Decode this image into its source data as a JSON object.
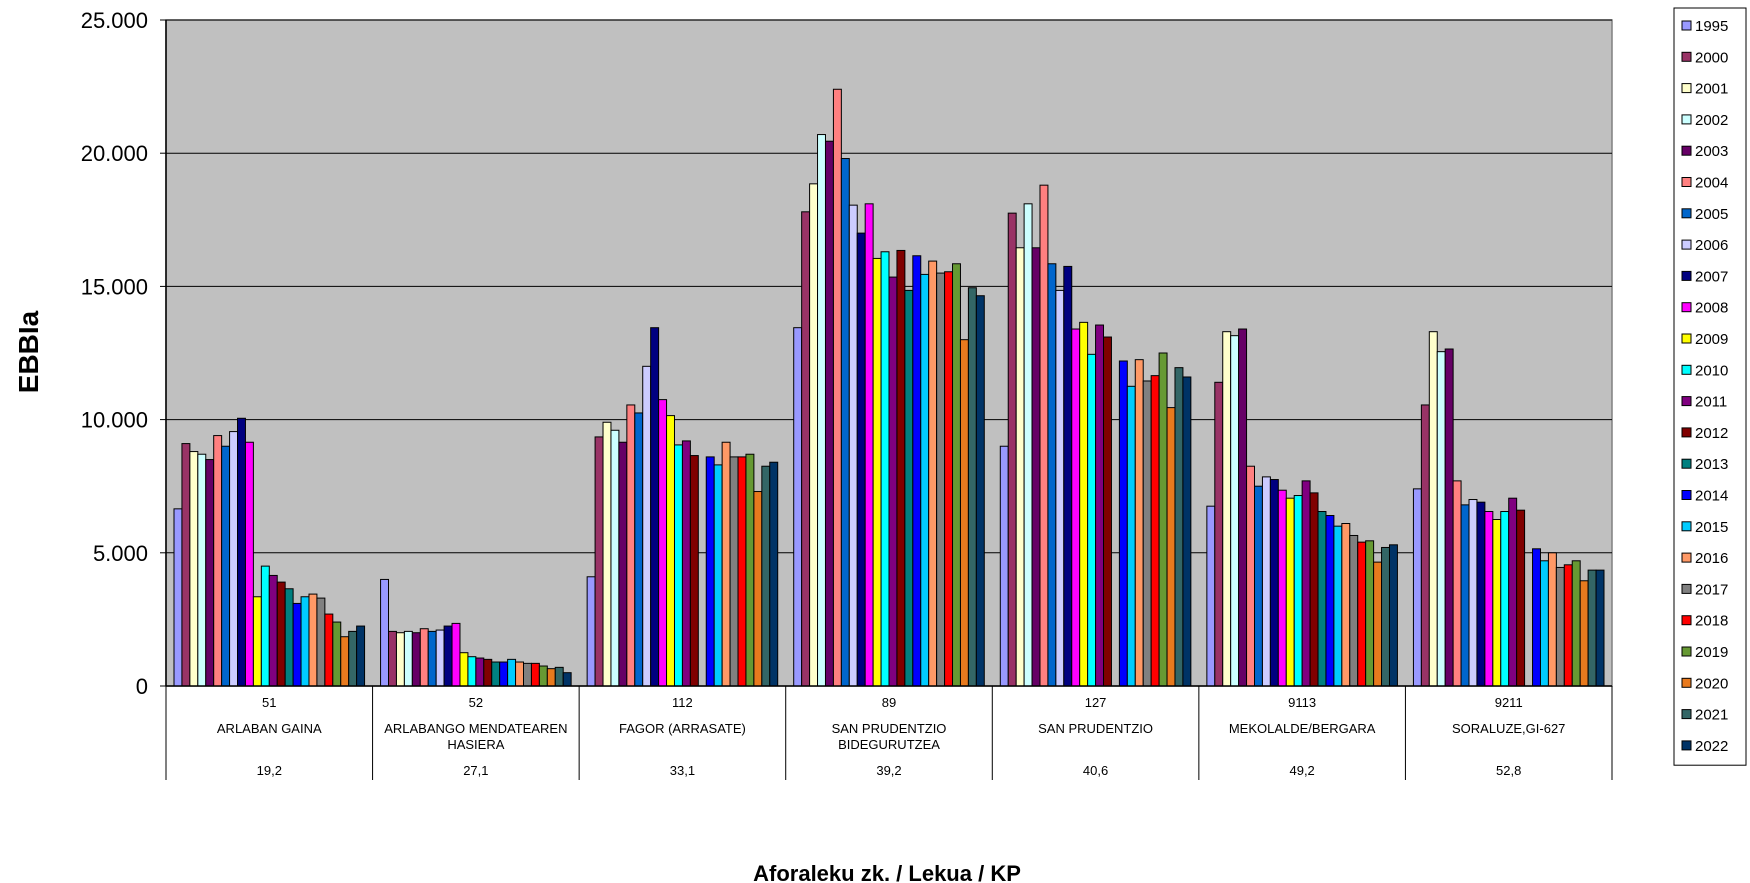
{
  "chart_data": {
    "type": "bar",
    "title": "",
    "ylabel": "EBBIa",
    "xlabel": "Aforaleku zk. / Lekua / KP",
    "ylim": [
      0,
      25000
    ],
    "yticks": [
      0,
      5000,
      10000,
      15000,
      20000,
      25000
    ],
    "ytick_labels": [
      "0",
      "5.000",
      "10.000",
      "15.000",
      "20.000",
      "25.000"
    ],
    "grid": true,
    "legend_position": "right",
    "categories": [
      {
        "id": "51",
        "name": "ARLABAN GAINA",
        "kp": "19,2"
      },
      {
        "id": "52",
        "name": "ARLABANGO MENDATEAREN HASIERA",
        "kp": "27,1"
      },
      {
        "id": "112",
        "name": "FAGOR (ARRASATE)",
        "kp": "33,1"
      },
      {
        "id": "89",
        "name": "SAN PRUDENTZIO BIDEGURUTZEA",
        "kp": "39,2"
      },
      {
        "id": "127",
        "name": "SAN PRUDENTZIO",
        "kp": "40,6"
      },
      {
        "id": "9113",
        "name": "MEKOLALDE/BERGARA",
        "kp": "49,2"
      },
      {
        "id": "9211",
        "name": "SORALUZE,GI-627",
        "kp": "52,8"
      }
    ],
    "series": [
      {
        "name": "1995",
        "color": "#9999FF",
        "values": [
          6650,
          4000,
          4100,
          13450,
          9000,
          6750,
          7400
        ]
      },
      {
        "name": "2000",
        "color": "#993366",
        "values": [
          9100,
          2050,
          9350,
          17800,
          17750,
          11400,
          10550
        ]
      },
      {
        "name": "2001",
        "color": "#FFFFCC",
        "values": [
          8800,
          2000,
          9900,
          18850,
          16450,
          13300,
          13300
        ]
      },
      {
        "name": "2002",
        "color": "#CCFFFF",
        "values": [
          8700,
          2050,
          9600,
          20700,
          18100,
          13150,
          12550
        ]
      },
      {
        "name": "2003",
        "color": "#660066",
        "values": [
          8500,
          2000,
          9150,
          20450,
          16450,
          13400,
          12650
        ]
      },
      {
        "name": "2004",
        "color": "#FF8080",
        "values": [
          9400,
          2150,
          10550,
          22400,
          18800,
          8250,
          7700
        ]
      },
      {
        "name": "2005",
        "color": "#0066CC",
        "values": [
          9000,
          2050,
          10250,
          19800,
          15850,
          7500,
          6800
        ]
      },
      {
        "name": "2006",
        "color": "#CCCCFF",
        "values": [
          9550,
          2100,
          12000,
          18050,
          14850,
          7850,
          7000
        ]
      },
      {
        "name": "2007",
        "color": "#000080",
        "values": [
          10050,
          2250,
          13450,
          17000,
          15750,
          7750,
          6900
        ]
      },
      {
        "name": "2008",
        "color": "#FF00FF",
        "values": [
          9150,
          2350,
          10750,
          18100,
          13400,
          7350,
          6550
        ]
      },
      {
        "name": "2009",
        "color": "#FFFF00",
        "values": [
          3350,
          1250,
          10150,
          16050,
          13650,
          7050,
          6250
        ]
      },
      {
        "name": "2010",
        "color": "#00FFFF",
        "values": [
          4500,
          1100,
          9050,
          16300,
          12450,
          7150,
          6550
        ]
      },
      {
        "name": "2011",
        "color": "#800080",
        "values": [
          4150,
          1050,
          9200,
          15350,
          13550,
          7700,
          7050
        ]
      },
      {
        "name": "2012",
        "color": "#800000",
        "values": [
          3900,
          1000,
          8650,
          16350,
          13100,
          7250,
          6600
        ]
      },
      {
        "name": "2013",
        "color": "#008080",
        "values": [
          3650,
          900,
          0,
          14850,
          0,
          6550,
          0
        ]
      },
      {
        "name": "2014",
        "color": "#0000FF",
        "values": [
          3100,
          900,
          8600,
          16150,
          12200,
          6400,
          5150
        ]
      },
      {
        "name": "2015",
        "color": "#00CCFF",
        "values": [
          3350,
          1000,
          8300,
          15450,
          11250,
          6000,
          4700
        ]
      },
      {
        "name": "2016",
        "color": "#FF9966",
        "values": [
          3450,
          900,
          9150,
          15950,
          12250,
          6100,
          5000
        ]
      },
      {
        "name": "2017",
        "color": "#808080",
        "values": [
          3300,
          850,
          8600,
          15500,
          11450,
          5650,
          4450
        ]
      },
      {
        "name": "2018",
        "color": "#FF0000",
        "values": [
          2700,
          850,
          8600,
          15550,
          11650,
          5400,
          4550
        ]
      },
      {
        "name": "2019",
        "color": "#669933",
        "values": [
          2400,
          750,
          8700,
          15850,
          12500,
          5450,
          4700
        ]
      },
      {
        "name": "2020",
        "color": "#E87A1E",
        "values": [
          1850,
          650,
          7300,
          13000,
          10450,
          4650,
          3950
        ]
      },
      {
        "name": "2021",
        "color": "#336666",
        "values": [
          2050,
          700,
          8250,
          14950,
          11950,
          5200,
          4350
        ]
      },
      {
        "name": "2022",
        "color": "#003366",
        "values": [
          2250,
          500,
          8400,
          14650,
          11600,
          5300,
          4350
        ]
      }
    ]
  },
  "colors": {
    "plot_background": "#C0C0C0",
    "gridline": "#000000",
    "bar_outline": "#000000"
  }
}
